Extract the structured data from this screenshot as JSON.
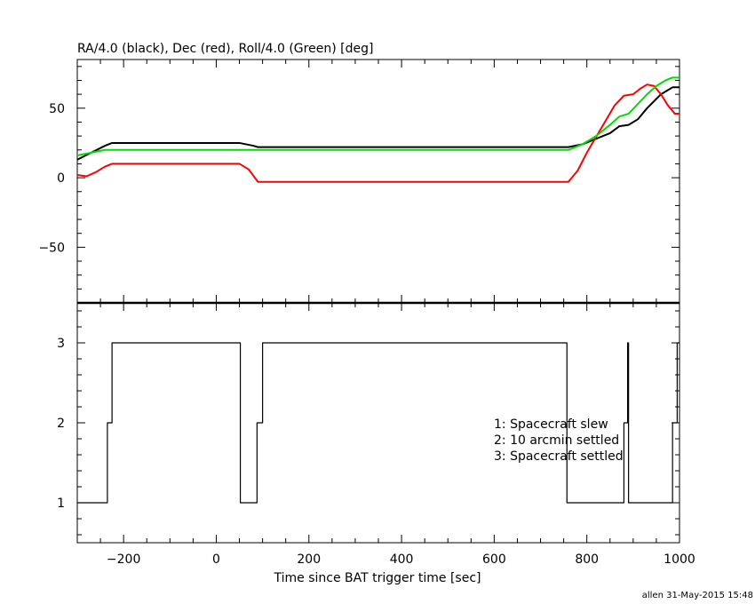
{
  "chart_data": [
    {
      "type": "line",
      "title": "RA/4.0 (black), Dec (red), Roll/4.0 (Green) [deg]",
      "xlim": [
        -300,
        1000
      ],
      "ylim": [
        -90,
        85
      ],
      "yticks": [
        {
          "v": -50,
          "label": "−50"
        },
        {
          "v": 0,
          "label": "0"
        },
        {
          "v": 50,
          "label": "50"
        }
      ],
      "series": [
        {
          "color": "#000000",
          "points": [
            [
              -300,
              13
            ],
            [
              -270,
              18
            ],
            [
              -240,
              23
            ],
            [
              -225,
              25
            ],
            [
              50,
              25
            ],
            [
              80,
              23
            ],
            [
              90,
              22
            ],
            [
              760,
              22
            ],
            [
              790,
              24
            ],
            [
              820,
              28
            ],
            [
              850,
              32
            ],
            [
              870,
              37
            ],
            [
              890,
              38
            ],
            [
              910,
              42
            ],
            [
              930,
              50
            ],
            [
              960,
              60
            ],
            [
              985,
              65
            ],
            [
              1000,
              65
            ]
          ]
        },
        {
          "color": "#ff0000",
          "points": [
            [
              -300,
              2
            ],
            [
              -280,
              1
            ],
            [
              -260,
              4
            ],
            [
              -240,
              8
            ],
            [
              -225,
              10
            ],
            [
              50,
              10
            ],
            [
              70,
              6
            ],
            [
              90,
              -3
            ],
            [
              760,
              -3
            ],
            [
              780,
              5
            ],
            [
              800,
              18
            ],
            [
              830,
              35
            ],
            [
              860,
              52
            ],
            [
              880,
              59
            ],
            [
              900,
              60
            ],
            [
              915,
              64
            ],
            [
              930,
              67
            ],
            [
              945,
              66
            ],
            [
              960,
              60
            ],
            [
              975,
              52
            ],
            [
              990,
              46
            ],
            [
              1000,
              46
            ]
          ]
        },
        {
          "color": "#00dd00",
          "points": [
            [
              -300,
              16
            ],
            [
              -270,
              18
            ],
            [
              -240,
              20
            ],
            [
              -225,
              20
            ],
            [
              760,
              20
            ],
            [
              790,
              24
            ],
            [
              820,
              30
            ],
            [
              850,
              38
            ],
            [
              870,
              44
            ],
            [
              890,
              46
            ],
            [
              910,
              53
            ],
            [
              930,
              60
            ],
            [
              950,
              66
            ],
            [
              970,
              70
            ],
            [
              985,
              72
            ],
            [
              1000,
              72
            ]
          ]
        }
      ]
    },
    {
      "type": "line",
      "xlabel": "Time since BAT trigger time [sec]",
      "xlim": [
        -300,
        1000
      ],
      "ylim": [
        0.5,
        3.5
      ],
      "xticks": [
        -200,
        0,
        200,
        400,
        600,
        800,
        1000
      ],
      "yticks": [
        1,
        2,
        3
      ],
      "legend": [
        "1: Spacecraft slew",
        "2: 10 arcmin settled",
        "3: Spacecraft settled"
      ],
      "series": [
        {
          "color": "#000000",
          "points": [
            [
              -300,
              1
            ],
            [
              -235,
              1
            ],
            [
              -235,
              2
            ],
            [
              -225,
              2
            ],
            [
              -225,
              3
            ],
            [
              52,
              3
            ],
            [
              52,
              1
            ],
            [
              88,
              1
            ],
            [
              88,
              2
            ],
            [
              100,
              2
            ],
            [
              100,
              3
            ],
            [
              757,
              3
            ],
            [
              757,
              1
            ],
            [
              880,
              1
            ],
            [
              880,
              2
            ],
            [
              888,
              2
            ],
            [
              888,
              3
            ],
            [
              890,
              3
            ],
            [
              890,
              1
            ],
            [
              985,
              1
            ],
            [
              985,
              2
            ],
            [
              995,
              2
            ],
            [
              995,
              3
            ],
            [
              1000,
              3
            ]
          ]
        }
      ]
    }
  ],
  "footer": "allen 31-May-2015 15:48"
}
